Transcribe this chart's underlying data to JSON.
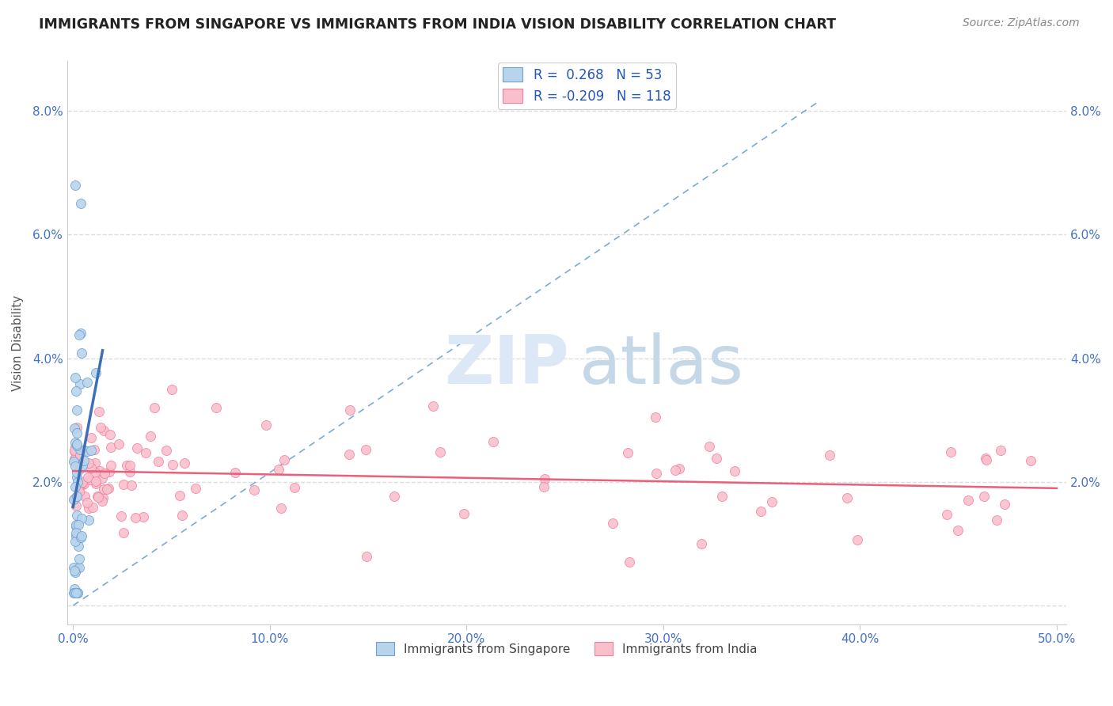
{
  "title": "IMMIGRANTS FROM SINGAPORE VS IMMIGRANTS FROM INDIA VISION DISABILITY CORRELATION CHART",
  "source": "Source: ZipAtlas.com",
  "ylabel": "Vision Disability",
  "r_singapore": 0.268,
  "n_singapore": 53,
  "r_india": -0.209,
  "n_india": 118,
  "color_singapore": "#b8d4ea",
  "color_india": "#f9c0cc",
  "edge_singapore": "#6a9fd8",
  "edge_india": "#f080a0",
  "line_color_singapore": "#3d6fb5",
  "line_color_india": "#e8607a",
  "dash_color_singapore": "#7aaad8",
  "xlim": [
    -0.003,
    0.505
  ],
  "ylim": [
    -0.003,
    0.088
  ],
  "xticks": [
    0.0,
    0.1,
    0.2,
    0.3,
    0.4,
    0.5
  ],
  "yticks": [
    0.0,
    0.02,
    0.04,
    0.06,
    0.08
  ],
  "right_ytick_labels": [
    "",
    "2.0%",
    "4.0%",
    "6.0%",
    "8.0%"
  ],
  "left_ytick_labels": [
    "",
    "2.0%",
    "4.0%",
    "6.0%",
    "8.0%"
  ],
  "xtick_labels": [
    "0.0%",
    "10.0%",
    "20.0%",
    "30.0%",
    "40.0%",
    "50.0%"
  ],
  "tick_color": "#4472C4",
  "grid_color": "#dddddd",
  "watermark_zip_color": "#dce8f5",
  "watermark_atlas_color": "#c5d8e8",
  "background": "#ffffff"
}
